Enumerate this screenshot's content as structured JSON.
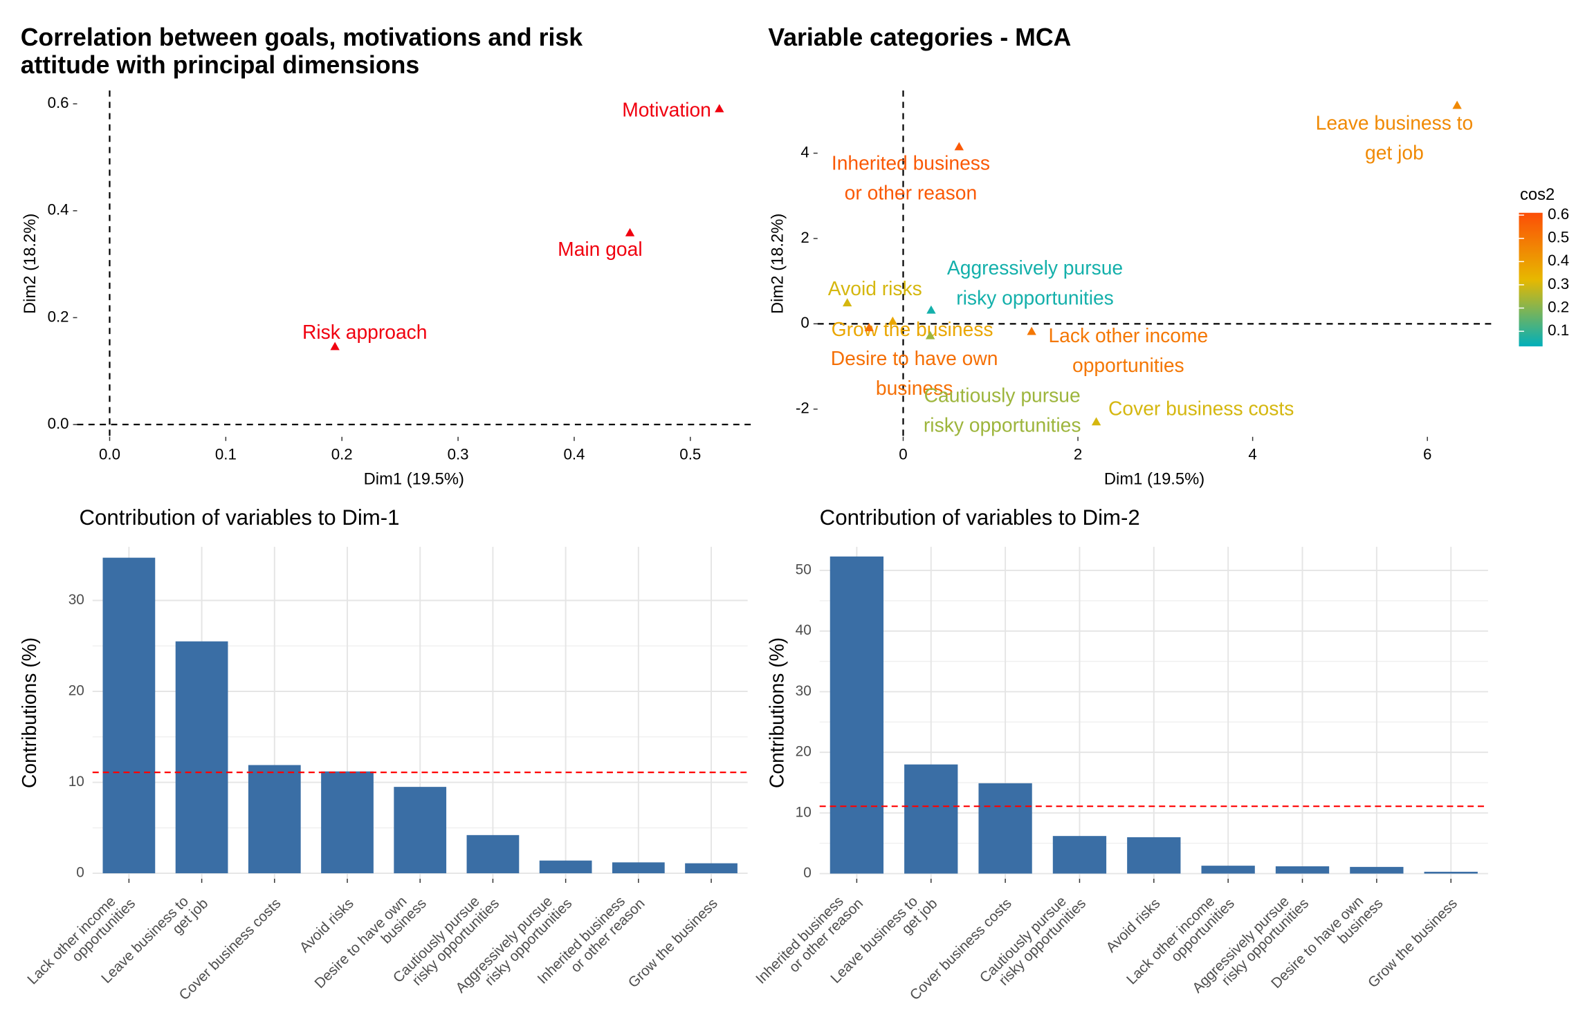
{
  "chart_data": [
    {
      "type": "scatter",
      "title": [
        "Correlation between goals, motivations and risk",
        "attitude with principal dimensions"
      ],
      "x_label": "Dim1 (19.5%)",
      "y_label": "Dim2 (18.2%)",
      "labels": [
        [
          "Motivation"
        ],
        [
          "Main goal"
        ],
        [
          "Risk approach"
        ]
      ],
      "x": [
        0.525,
        0.448,
        0.194
      ],
      "y": [
        0.59,
        0.358,
        0.145
      ],
      "color": "#f0000f",
      "xlim": [
        -0.028,
        0.552
      ],
      "ylim": [
        -0.023,
        0.625
      ],
      "xticks": [
        {
          "value": 0,
          "label": "0.0"
        },
        0.1,
        0.2,
        0.3,
        0.4,
        0.5
      ],
      "yticks": [
        {
          "value": 0,
          "label": "0.0"
        },
        0.2,
        0.4,
        0.6
      ],
      "ref_lines": {
        "x": 0,
        "y": 0
      },
      "grid": false
    },
    {
      "type": "scatter",
      "title": "Variable categories - MCA",
      "x_label": "Dim1 (19.5%)",
      "y_label": "Dim2 (18.2%)",
      "labels": [
        [
          "Leave business to",
          "get job"
        ],
        [
          "Inherited business",
          "or other reason"
        ],
        [
          "Aggressively pursue",
          "risky opportunities"
        ],
        [
          "Avoid risks"
        ],
        [
          "Grow the business"
        ],
        [
          "Desire to have own",
          "business"
        ],
        [
          "Cautiously pursue",
          "risky opportunities"
        ],
        [
          "Lack other income",
          "opportunities"
        ],
        [
          "Cover business costs"
        ]
      ],
      "x": [
        6.34,
        0.64,
        0.32,
        -0.64,
        -0.12,
        -0.39,
        0.31,
        1.47,
        2.21
      ],
      "y": [
        5.11,
        4.14,
        0.31,
        0.48,
        0.05,
        -0.1,
        -0.29,
        -0.19,
        -2.31
      ],
      "cos2": [
        0.45,
        0.58,
        0.06,
        0.3,
        0.37,
        0.52,
        0.23,
        0.5,
        0.3
      ],
      "color_scale": {
        "title": "cos2",
        "colors": [
          "#00AFBB",
          "#E7B800",
          "#FC4E07"
        ],
        "lim": [
          0.035,
          0.61
        ],
        "ticks": [
          0.1,
          0.2,
          0.3,
          0.4,
          0.5,
          0.6
        ]
      },
      "xlim": [
        -0.98,
        6.73
      ],
      "ylim": [
        -2.65,
        5.47
      ],
      "xticks": [
        0,
        2,
        4,
        6
      ],
      "yticks": [
        -2,
        0,
        2,
        4
      ],
      "ref_lines": {
        "x": 0,
        "y": 0
      },
      "grid": false
    },
    {
      "type": "bar",
      "title": "Contribution of variables to Dim-1",
      "y_label": "Contributions (%)",
      "categories": [
        [
          "Lack other income",
          "opportunities"
        ],
        [
          "Leave business to",
          "get job"
        ],
        [
          "Cover business costs"
        ],
        [
          "Avoid risks"
        ],
        [
          "Desire to have own",
          "business"
        ],
        [
          "Cautiously pursue",
          "risky opportunities"
        ],
        [
          "Aggressively pursue",
          "risky opportunities"
        ],
        [
          "Inherited business",
          "or other reason"
        ],
        [
          "Grow the business"
        ]
      ],
      "values": [
        34.7,
        25.5,
        11.9,
        11.2,
        9.5,
        4.2,
        1.4,
        1.2,
        1.1
      ],
      "color": "#3a6ea5",
      "ref_line": 11.1,
      "ref_color": "#ff0000",
      "ylim": [
        -0.6,
        35.9
      ],
      "yticks": [
        0,
        10,
        20,
        30
      ],
      "grid": true
    },
    {
      "type": "bar",
      "title": "Contribution of variables to Dim-2",
      "y_label": "Contributions (%)",
      "categories": [
        [
          "Inherited business",
          "or other reason"
        ],
        [
          "Leave business to",
          "get job"
        ],
        [
          "Cover business costs"
        ],
        [
          "Cautiously pursue",
          "risky opportunities"
        ],
        [
          "Avoid risks"
        ],
        [
          "Lack other income",
          "opportunities"
        ],
        [
          "Aggressively pursue",
          "risky opportunities"
        ],
        [
          "Desire to have own",
          "business"
        ],
        [
          "Grow the business"
        ]
      ],
      "values": [
        52.3,
        18.0,
        14.9,
        6.2,
        6.0,
        1.3,
        1.2,
        1.1,
        0.3
      ],
      "color": "#3a6ea5",
      "ref_line": 11.1,
      "ref_color": "#ff0000",
      "ylim": [
        -0.85,
        53.9
      ],
      "yticks": [
        0,
        10,
        20,
        30,
        40,
        50
      ],
      "grid": true
    }
  ]
}
